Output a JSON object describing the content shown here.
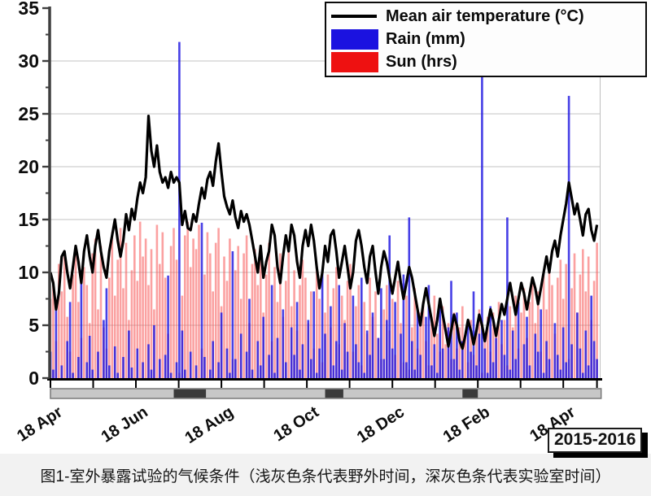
{
  "figure": {
    "legend": [
      {
        "label": "Mean air temperature (°C)",
        "swatch": "line",
        "color": "#000000"
      },
      {
        "label": "Rain (mm)",
        "swatch": "rect",
        "color": "#1b12e0"
      },
      {
        "label": "Sun (hrs)",
        "swatch": "rect",
        "color": "#ee1111"
      }
    ],
    "period_label": "2015-2016",
    "caption": "图1-室外暴露试验的气候条件（浅灰色条代表野外时间，深灰色条代表实验室时间）"
  },
  "chart_data": {
    "type": "line+bar",
    "title": "",
    "xlabel": "",
    "ylabel": "",
    "xlim": [
      0,
      392
    ],
    "ylim": [
      0,
      35
    ],
    "grid": "horizontal light-gray lines at each major y tick",
    "legend_position": "top-right",
    "y_major_ticks": [
      0,
      5,
      10,
      15,
      20,
      25,
      30,
      35
    ],
    "y_minor_ticks": [
      2.5,
      7.5,
      12.5,
      17.5,
      22.5,
      27.5,
      32.5
    ],
    "x_tick_days": [
      0,
      30.5,
      61,
      91.5,
      122,
      152.5,
      183,
      213.5,
      244,
      274.5,
      305,
      335.5,
      366,
      390
    ],
    "x_tick_labels": [
      "18 Apr",
      "",
      "18 Jun",
      "",
      "18 Aug",
      "",
      "18 Oct",
      "",
      "18 Dec",
      "",
      "18 Feb",
      "",
      "18 Apr",
      ""
    ],
    "sample_step_days": 2,
    "series": [
      {
        "name": "Mean air temperature (°C)",
        "type": "line",
        "color": "#000000",
        "values": [
          10,
          9,
          6.5,
          8,
          11.5,
          12,
          10,
          8.5,
          10.5,
          12.5,
          11,
          9,
          12,
          13.5,
          11.5,
          10,
          12.5,
          14,
          12,
          10.5,
          9.5,
          12,
          13.5,
          15,
          13,
          11.5,
          13,
          15.5,
          14,
          16,
          15,
          17,
          18.5,
          17.5,
          19,
          24.8,
          21.5,
          20,
          22,
          19.5,
          18.5,
          19,
          18,
          19.5,
          18.5,
          19,
          18.5,
          14.5,
          15.8,
          14.2,
          14,
          15.5,
          14.8,
          16.5,
          18,
          17,
          18.8,
          19.5,
          18.2,
          20.5,
          22.2,
          19.5,
          17.2,
          16.2,
          15.5,
          16.8,
          15.2,
          14.2,
          15.8,
          14.8,
          15.5,
          14.5,
          13,
          11.5,
          10,
          12.5,
          9.5,
          11,
          12,
          14.5,
          13.5,
          10.5,
          9,
          11.5,
          13.5,
          12,
          14.5,
          13.5,
          11,
          9.5,
          12.5,
          14,
          12.5,
          14.5,
          13,
          10.5,
          8.5,
          10,
          12.5,
          11,
          13.5,
          14,
          12,
          9.5,
          11,
          12.5,
          10.5,
          8.5,
          10,
          13,
          14,
          12.5,
          10.5,
          9,
          11.5,
          12.5,
          10,
          8,
          10.5,
          12,
          11,
          9.5,
          8,
          9.5,
          11,
          9,
          7.5,
          9,
          10.5,
          9.5,
          8,
          6.5,
          5,
          7,
          8.5,
          7,
          5.5,
          4,
          5.5,
          7.5,
          6,
          4.5,
          3,
          4.5,
          6,
          5,
          3.5,
          2.8,
          4,
          5.5,
          4.5,
          3.2,
          4.5,
          6,
          5,
          3.5,
          5,
          6.5,
          5.5,
          4,
          5.5,
          7,
          6,
          7.5,
          9,
          7.5,
          6,
          7.5,
          9,
          8,
          6.5,
          8,
          9.5,
          8.5,
          7,
          8.5,
          10,
          11.5,
          10,
          12,
          13,
          11.5,
          13.5,
          15,
          16.5,
          18.5,
          17,
          15.5,
          16.5,
          15,
          13.5,
          15.5,
          16,
          14,
          13,
          14.5
        ]
      },
      {
        "name": "Rain (mm)",
        "type": "bar",
        "color": "#1b12e0",
        "values": [
          2.5,
          0.8,
          6.5,
          0,
          1.2,
          0,
          3.5,
          7.2,
          0.5,
          0,
          2,
          10.2,
          0,
          1.5,
          4,
          0.8,
          0,
          2.5,
          0,
          5.5,
          8.5,
          1.2,
          0,
          3,
          0.5,
          0,
          2,
          0,
          4.5,
          1,
          0,
          2.8,
          0,
          1.5,
          0,
          3.2,
          0.8,
          5,
          0,
          1.8,
          0,
          2.2,
          9.7,
          0.5,
          0,
          1.5,
          31.8,
          4.5,
          0.8,
          0,
          2.5,
          0,
          1.2,
          0,
          14.7,
          2,
          0,
          0.8,
          3.5,
          0,
          1.5,
          6.2,
          0,
          2.8,
          0.5,
          12,
          1.8,
          0,
          4.2,
          0,
          2.5,
          7.5,
          0.8,
          0,
          3.5,
          1.2,
          5.8,
          0,
          2.2,
          8.8,
          0.5,
          3.8,
          0,
          6.5,
          1.5,
          0,
          4.8,
          2.2,
          7.2,
          0.8,
          3.2,
          0,
          5.5,
          1.8,
          8.2,
          0.5,
          2.8,
          10.2,
          4.2,
          0,
          6.8,
          1.2,
          3.5,
          8.8,
          0.8,
          5.2,
          2.5,
          0,
          7.8,
          3.2,
          1.5,
          9.5,
          0.5,
          4.5,
          2.2,
          6.2,
          0,
          3.8,
          8.5,
          1.8,
          5.5,
          13.5,
          2.8,
          7.2,
          0,
          4.2,
          9.8,
          1.5,
          15.2,
          3.5,
          0.8,
          6.5,
          2.2,
          0,
          5.8,
          8.8,
          1.2,
          3.2,
          0.5,
          7.5,
          2.8,
          0,
          4.8,
          9.2,
          1.8,
          6.2,
          0.8,
          3.5,
          0,
          5.2,
          2.5,
          8.2,
          1.2,
          4.2,
          28.5,
          2.8,
          0.5,
          6.8,
          1.5,
          3.8,
          0,
          5.5,
          2.2,
          15.2,
          0.8,
          4.5,
          1.8,
          7.2,
          0,
          3.2,
          5.8,
          1.2,
          0,
          4.2,
          2.5,
          6.5,
          0.5,
          3.5,
          1.8,
          0,
          5.2,
          2.2,
          0.8,
          4.8,
          1.5,
          26.7,
          3.2,
          0,
          6.2,
          2.8,
          0.5,
          4.5,
          1.2,
          7.8,
          3.5,
          1.8
        ]
      },
      {
        "name": "Sun (hrs)",
        "type": "bar",
        "color": "#f25555",
        "values": [
          7.5,
          9.2,
          3.5,
          10.8,
          8.2,
          11.5,
          5.8,
          2.5,
          9.8,
          12.2,
          7.2,
          3.8,
          10.5,
          8.8,
          5.2,
          11.8,
          13.2,
          6.5,
          12.5,
          4.8,
          2.8,
          9.5,
          13.8,
          7.8,
          11.2,
          14.2,
          8.5,
          12.8,
          5.5,
          10.2,
          13.5,
          9.2,
          14.8,
          11.5,
          13.2,
          8.8,
          12.2,
          6.5,
          14.5,
          10.8,
          13.8,
          9.5,
          4.2,
          12.5,
          14.2,
          11.2,
          0.5,
          7.8,
          13.5,
          14.8,
          10.5,
          13.2,
          12.2,
          14.5,
          2.8,
          9.8,
          13.8,
          11.8,
          8.2,
          12.8,
          14.2,
          6.8,
          11.5,
          9.2,
          13.2,
          1.8,
          10.2,
          12.5,
          7.5,
          11.8,
          13.5,
          5.2,
          10.8,
          12.2,
          8.8,
          11.2,
          6.2,
          9.8,
          12.8,
          3.5,
          10.5,
          7.2,
          11.8,
          5.8,
          9.2,
          12.2,
          6.8,
          10.2,
          4.5,
          8.8,
          11.2,
          9.5,
          5.2,
          8.2,
          2.8,
          10.8,
          7.5,
          1.5,
          6.2,
          9.8,
          4.8,
          8.5,
          10.5,
          3.2,
          7.8,
          5.5,
          9.2,
          10.8,
          2.5,
          6.8,
          8.8,
          1.2,
          7.2,
          4.2,
          9.5,
          5.8,
          8.2,
          3.8,
          1.8,
          6.5,
          8.8,
          4.5,
          7.5,
          2.2,
          9.2,
          5.2,
          1.5,
          7.8,
          0.8,
          4.8,
          8.5,
          2.8,
          6.2,
          7.2,
          3.5,
          1.2,
          5.8,
          7.8,
          4.2,
          2.5,
          6.8,
          3.2,
          5.2,
          1.8,
          6.2,
          2.8,
          4.8,
          6.8,
          3.8,
          1.5,
          5.5,
          2.2,
          4.5,
          6.5,
          0.5,
          3.5,
          5.8,
          2.5,
          6.2,
          4.2,
          7.2,
          3.2,
          5.5,
          1.2,
          6.8,
          4.8,
          7.8,
          2.8,
          6.2,
          8.5,
          3.8,
          7.2,
          9.2,
          5.2,
          8.2,
          2.5,
          9.8,
          6.5,
          10.5,
          8.8,
          4.2,
          9.5,
          11.2,
          7.5,
          10.8,
          1.8,
          8.5,
          11.8,
          6.2,
          9.8,
          12.2,
          8.2,
          11.5,
          5.5,
          9.2,
          12.8
        ]
      }
    ],
    "timeline": {
      "bar_color": "#c7c7c7",
      "segment_color": "#3b3b3b",
      "range_days": [
        0,
        393
      ],
      "dark_segments_days": [
        [
          88,
          111
        ],
        [
          196,
          209
        ],
        [
          294,
          305
        ]
      ]
    }
  }
}
